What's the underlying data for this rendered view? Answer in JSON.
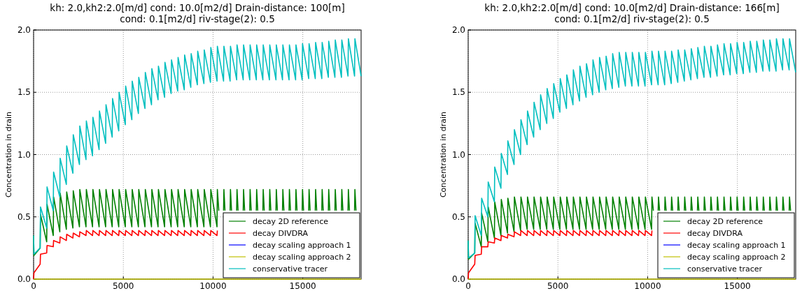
{
  "chart_data": [
    {
      "type": "line",
      "title": "kh: 2.0,kh2:2.0[m/d] cond: 10.0[m2/d] Drain-distance: 100[m]\ncond: 0.1[m2/d] riv-stage(2): 0.5",
      "ylabel": "Concentration in drain",
      "xlim": [
        0,
        18250
      ],
      "ylim": [
        0,
        2
      ],
      "xticks": [
        0,
        5000,
        10000,
        15000
      ],
      "yticks": [
        {
          "value": 0,
          "label": "0.0"
        },
        {
          "value": 0.5,
          "label": "0.5"
        },
        {
          "value": 1,
          "label": "1.0"
        },
        {
          "value": 1.5,
          "label": "1.5"
        },
        {
          "value": 2,
          "label": "2.0"
        }
      ],
      "grid": true,
      "legend": "bottom right",
      "x": [
        0,
        20,
        365,
        385,
        730,
        750,
        1095,
        1115,
        1460,
        1480,
        1825,
        1845,
        2190,
        2210,
        2555,
        2575,
        2920,
        2940,
        3285,
        3305,
        3650,
        3670,
        4015,
        4035,
        4380,
        4400,
        4745,
        4765,
        5110,
        5130,
        5475,
        5495,
        5840,
        5860,
        6205,
        6225,
        6570,
        6590,
        6935,
        6955,
        7300,
        7320,
        7665,
        7685,
        8030,
        8050,
        8395,
        8415,
        8760,
        8780,
        9125,
        9145,
        9490,
        9510,
        9855,
        9875,
        10220,
        10240,
        10585,
        10605,
        10950,
        10970,
        11315,
        11335,
        11680,
        11700,
        12045,
        12065,
        12410,
        12430,
        12775,
        12795,
        13140,
        13160,
        13505,
        13525,
        13870,
        13890,
        14235,
        14255,
        14600,
        14620,
        14965,
        14985,
        15330,
        15350,
        15695,
        15715,
        16060,
        16080,
        16425,
        16445,
        16790,
        16810,
        17155,
        17175,
        17520,
        17540,
        17885,
        17905,
        18250
      ],
      "series": [
        {
          "name": "decay 2D reference",
          "color": "#008000",
          "x": [
            0,
            20,
            365,
            385,
            730,
            750,
            1095,
            1115,
            1460,
            1480,
            1825,
            1845,
            2190,
            2210,
            2555,
            2575,
            2920,
            2940,
            3285,
            3305,
            3650,
            3670,
            4015,
            4035,
            4380,
            4400,
            4745,
            4765,
            5110,
            5130,
            5475,
            5495,
            5840,
            5860,
            6205,
            6225,
            6570,
            6590,
            6935,
            6955,
            7300,
            7320,
            7665,
            7685,
            8030,
            8050,
            8395,
            8415,
            8760,
            8780,
            9125,
            9145,
            9490,
            9510,
            9855,
            9875,
            10220,
            10240,
            10320,
            10440,
            10585,
            10605,
            10665,
            10785,
            10950,
            10970,
            11030,
            11150,
            11315,
            11335,
            11395,
            11515,
            11680,
            11700,
            11760,
            11880,
            12045,
            12065,
            12125,
            12245,
            12410,
            12430,
            12490,
            12610,
            12775,
            12795,
            12855,
            12975,
            13140,
            13160,
            13220,
            13340,
            13505,
            13525,
            13585,
            13705,
            13870,
            13890,
            13950,
            14070,
            14235,
            14255,
            14315,
            14435,
            14600,
            14620,
            14680,
            14800,
            14965,
            14985,
            15045,
            15165,
            15330,
            15350,
            15410,
            15530,
            15695,
            15715,
            15775,
            15895,
            16060,
            16080,
            16140,
            16260,
            16425,
            16445,
            16505,
            16625,
            16790,
            16810,
            16870,
            16990,
            17155,
            17175,
            17235,
            17355,
            17520,
            17540,
            17600,
            17720,
            17885,
            17905,
            17965
          ],
          "values": [
            0.35,
            0.19,
            0.25,
            0.52,
            0.3,
            0.6,
            0.35,
            0.66,
            0.38,
            0.69,
            0.4,
            0.7,
            0.41,
            0.71,
            0.42,
            0.72,
            0.42,
            0.72,
            0.42,
            0.72,
            0.42,
            0.72,
            0.42,
            0.72,
            0.42,
            0.72,
            0.42,
            0.72,
            0.42,
            0.72,
            0.42,
            0.72,
            0.42,
            0.72,
            0.42,
            0.72,
            0.42,
            0.72,
            0.42,
            0.72,
            0.42,
            0.72,
            0.42,
            0.72,
            0.42,
            0.72,
            0.42,
            0.72,
            0.42,
            0.72,
            0.42,
            0.72,
            0.42,
            0.72,
            0.42,
            0.72,
            0.42,
            0.72,
            0.55,
            null,
            0.55,
            0.72,
            0.55,
            null,
            0.55,
            0.72,
            0.55,
            null,
            0.55,
            0.72,
            0.55,
            null,
            0.55,
            0.72,
            0.55,
            null,
            0.55,
            0.72,
            0.55,
            null,
            0.55,
            0.72,
            0.55,
            null,
            0.55,
            0.72,
            0.55,
            null,
            0.55,
            0.72,
            0.55,
            null,
            0.55,
            0.72,
            0.55,
            null,
            0.55,
            0.72,
            0.55,
            null,
            0.55,
            0.72,
            0.55,
            null,
            0.55,
            0.72,
            0.55,
            null,
            0.55,
            0.72,
            0.55,
            null,
            0.55,
            0.72,
            0.55,
            null,
            0.55,
            0.72,
            0.55,
            null,
            0.55,
            0.72,
            0.55,
            null,
            0.55,
            0.72,
            0.55,
            null,
            0.55,
            0.72,
            0.55,
            null,
            0.55,
            0.72,
            0.55,
            null,
            0.55,
            0.72,
            0.55,
            null,
            0.55,
            0.72,
            0.55
          ]
        },
        {
          "name": "decay DIVDRA",
          "color": "#ff0000",
          "x": [
            0,
            20,
            365,
            385,
            730,
            750,
            1095,
            1115,
            1460,
            1480,
            1825,
            1845,
            2190,
            2210,
            2555,
            2575,
            2920,
            2940,
            3285,
            3305,
            3650,
            3670,
            4015,
            4035,
            4380,
            4400,
            4745,
            4765,
            5110,
            5130,
            5475,
            5495,
            5840,
            5860,
            6205,
            6225,
            6570,
            6590,
            6935,
            6955,
            7300,
            7320,
            7665,
            7685,
            8030,
            8050,
            8395,
            8415,
            8760,
            8780,
            9125,
            9145,
            9490,
            9510,
            9855,
            9875,
            10220,
            10240
          ],
          "values": [
            0,
            0.05,
            0.12,
            0.2,
            0.21,
            0.27,
            0.26,
            0.31,
            0.29,
            0.34,
            0.31,
            0.36,
            0.33,
            0.37,
            0.34,
            0.38,
            0.35,
            0.39,
            0.35,
            0.39,
            0.35,
            0.39,
            0.35,
            0.39,
            0.35,
            0.39,
            0.35,
            0.39,
            0.35,
            0.39,
            0.35,
            0.39,
            0.35,
            0.39,
            0.35,
            0.39,
            0.35,
            0.39,
            0.35,
            0.39,
            0.35,
            0.39,
            0.35,
            0.39,
            0.35,
            0.39,
            0.35,
            0.39,
            0.35,
            0.39,
            0.35,
            0.39,
            0.35,
            0.39,
            0.35,
            0.39,
            0.35,
            0.39
          ]
        },
        {
          "name": "decay scaling approach 1",
          "color": "#0000ff",
          "values": [
            null,
            null,
            null,
            null,
            null,
            null,
            null,
            null,
            null,
            null,
            null,
            null,
            null,
            null,
            null,
            null,
            null,
            null,
            null,
            null,
            null,
            null,
            null,
            null,
            null,
            null,
            null,
            null,
            null,
            null,
            null,
            null,
            null,
            null,
            null,
            null,
            null,
            null,
            null,
            null,
            null,
            null,
            null,
            null,
            null,
            null,
            null,
            null,
            null,
            null,
            null,
            null,
            null,
            null,
            null,
            null,
            null,
            null,
            null,
            null,
            null,
            null,
            null,
            null,
            null,
            null,
            null,
            null,
            null,
            null,
            null,
            null,
            null,
            null,
            null,
            null,
            null,
            null,
            null,
            null,
            null,
            null,
            null,
            null,
            null,
            null,
            null,
            null,
            null,
            null,
            null,
            null,
            null,
            null,
            null,
            null,
            null,
            null,
            null,
            null,
            null
          ]
        },
        {
          "name": "decay scaling approach 2",
          "color": "#bfbf00",
          "x": [
            0,
            18250
          ],
          "values": [
            0,
            0
          ]
        },
        {
          "name": "conservative tracer",
          "color": "#00bfbf",
          "values": [
            0.35,
            0.2,
            0.25,
            0.58,
            0.41,
            0.74,
            0.55,
            0.86,
            0.66,
            0.97,
            0.76,
            1.07,
            0.85,
            1.16,
            0.92,
            1.23,
            0.96,
            1.27,
            0.99,
            1.3,
            1.04,
            1.35,
            1.09,
            1.4,
            1.14,
            1.45,
            1.19,
            1.5,
            1.24,
            1.55,
            1.28,
            1.59,
            1.33,
            1.62,
            1.37,
            1.66,
            1.4,
            1.69,
            1.44,
            1.71,
            1.46,
            1.74,
            1.49,
            1.76,
            1.51,
            1.78,
            1.52,
            1.8,
            1.54,
            1.81,
            1.56,
            1.83,
            1.57,
            1.84,
            1.58,
            1.86,
            1.59,
            1.87,
            1.59,
            1.87,
            1.59,
            1.87,
            1.6,
            1.88,
            1.6,
            1.88,
            1.6,
            1.88,
            1.6,
            1.88,
            1.6,
            1.88,
            1.6,
            1.88,
            1.6,
            1.88,
            1.6,
            1.88,
            1.6,
            1.88,
            1.6,
            1.88,
            1.6,
            1.89,
            1.61,
            1.89,
            1.61,
            1.9,
            1.61,
            1.9,
            1.62,
            1.91,
            1.62,
            1.92,
            1.62,
            1.92,
            1.63,
            1.93,
            1.63,
            1.93,
            1.63
          ]
        }
      ]
    },
    {
      "type": "line",
      "title": "kh: 2.0,kh2:2.0[m/d] cond: 10.0[m2/d] Drain-distance: 166[m]\ncond: 0.1[m2/d] riv-stage(2): 0.5",
      "ylabel": "Concentration in drain",
      "xlim": [
        0,
        18250
      ],
      "ylim": [
        0,
        2
      ],
      "xticks": [
        0,
        5000,
        10000,
        15000
      ],
      "yticks": [
        {
          "value": 0,
          "label": "0.0"
        },
        {
          "value": 0.5,
          "label": "0.5"
        },
        {
          "value": 1,
          "label": "1.0"
        },
        {
          "value": 1.5,
          "label": "1.5"
        },
        {
          "value": 2,
          "label": "2.0"
        }
      ],
      "grid": true,
      "legend": "bottom right",
      "x": [
        0,
        20,
        365,
        385,
        730,
        750,
        1095,
        1115,
        1460,
        1480,
        1825,
        1845,
        2190,
        2210,
        2555,
        2575,
        2920,
        2940,
        3285,
        3305,
        3650,
        3670,
        4015,
        4035,
        4380,
        4400,
        4745,
        4765,
        5110,
        5130,
        5475,
        5495,
        5840,
        5860,
        6205,
        6225,
        6570,
        6590,
        6935,
        6955,
        7300,
        7320,
        7665,
        7685,
        8030,
        8050,
        8395,
        8415,
        8760,
        8780,
        9125,
        9145,
        9490,
        9510,
        9855,
        9875,
        10220,
        10240,
        10585,
        10605,
        10950,
        10970,
        11315,
        11335,
        11680,
        11700,
        12045,
        12065,
        12410,
        12430,
        12775,
        12795,
        13140,
        13160,
        13505,
        13525,
        13870,
        13890,
        14235,
        14255,
        14600,
        14620,
        14965,
        14985,
        15330,
        15350,
        15695,
        15715,
        16060,
        16080,
        16425,
        16445,
        16790,
        16810,
        17155,
        17175,
        17520,
        17540,
        17885,
        17905,
        18250
      ],
      "series": [
        {
          "name": "decay 2D reference",
          "color": "#008000",
          "x": [
            0,
            20,
            365,
            385,
            730,
            750,
            1095,
            1115,
            1460,
            1480,
            1825,
            1845,
            2190,
            2210,
            2555,
            2575,
            2920,
            2940,
            3285,
            3305,
            3650,
            3670,
            4015,
            4035,
            4380,
            4400,
            4745,
            4765,
            5110,
            5130,
            5475,
            5495,
            5840,
            5860,
            6205,
            6225,
            6570,
            6590,
            6935,
            6955,
            7300,
            7320,
            7665,
            7685,
            8030,
            8050,
            8395,
            8415,
            8760,
            8780,
            9125,
            9145,
            9490,
            9510,
            9855,
            9875,
            10220,
            10240,
            10320,
            10440,
            10585,
            10605,
            10665,
            10785,
            10950,
            10970,
            11030,
            11150,
            11315,
            11335,
            11395,
            11515,
            11680,
            11700,
            11760,
            11880,
            12045,
            12065,
            12125,
            12245,
            12410,
            12430,
            12490,
            12610,
            12775,
            12795,
            12855,
            12975,
            13140,
            13160,
            13220,
            13340,
            13505,
            13525,
            13585,
            13705,
            13870,
            13890,
            13950,
            14070,
            14235,
            14255,
            14315,
            14435,
            14600,
            14620,
            14680,
            14800,
            14965,
            14985,
            15045,
            15165,
            15330,
            15350,
            15410,
            15530,
            15695,
            15715,
            15775,
            15895,
            16060,
            16080,
            16140,
            16260,
            16425,
            16445,
            16505,
            16625,
            16790,
            16810,
            16870,
            16990,
            17155,
            17175,
            17235,
            17355,
            17520,
            17540,
            17600,
            17720,
            17885,
            17905,
            17965
          ],
          "values": [
            0.31,
            0.16,
            0.21,
            0.45,
            0.26,
            0.53,
            0.3,
            0.58,
            0.33,
            0.62,
            0.35,
            0.64,
            0.37,
            0.65,
            0.38,
            0.66,
            0.39,
            0.66,
            0.4,
            0.66,
            0.4,
            0.66,
            0.4,
            0.66,
            0.4,
            0.66,
            0.4,
            0.66,
            0.4,
            0.66,
            0.4,
            0.66,
            0.4,
            0.66,
            0.4,
            0.66,
            0.4,
            0.66,
            0.4,
            0.66,
            0.4,
            0.66,
            0.4,
            0.66,
            0.4,
            0.66,
            0.4,
            0.66,
            0.4,
            0.66,
            0.4,
            0.66,
            0.4,
            0.66,
            0.4,
            0.66,
            0.4,
            0.66,
            0.55,
            null,
            0.55,
            0.66,
            0.55,
            null,
            0.55,
            0.66,
            0.55,
            null,
            0.55,
            0.66,
            0.55,
            null,
            0.55,
            0.66,
            0.55,
            null,
            0.55,
            0.66,
            0.55,
            null,
            0.55,
            0.66,
            0.55,
            null,
            0.55,
            0.66,
            0.55,
            null,
            0.55,
            0.66,
            0.55,
            null,
            0.55,
            0.66,
            0.55,
            null,
            0.55,
            0.66,
            0.55,
            null,
            0.55,
            0.66,
            0.55,
            null,
            0.55,
            0.66,
            0.55,
            null,
            0.55,
            0.66,
            0.55,
            null,
            0.55,
            0.66,
            0.55,
            null,
            0.55,
            0.66,
            0.55,
            null,
            0.55,
            0.66,
            0.55,
            null,
            0.55,
            0.66,
            0.55,
            null,
            0.55,
            0.66,
            0.55,
            null,
            0.55,
            0.66,
            0.55,
            null,
            0.55,
            0.66,
            0.55,
            null,
            0.55,
            0.66,
            0.55
          ]
        },
        {
          "name": "decay DIVDRA",
          "color": "#ff0000",
          "x": [
            0,
            20,
            365,
            385,
            730,
            750,
            1095,
            1115,
            1460,
            1480,
            1825,
            1845,
            2190,
            2210,
            2555,
            2575,
            2920,
            2940,
            3285,
            3305,
            3650,
            3670,
            4015,
            4035,
            4380,
            4400,
            4745,
            4765,
            5110,
            5130,
            5475,
            5495,
            5840,
            5860,
            6205,
            6225,
            6570,
            6590,
            6935,
            6955,
            7300,
            7320,
            7665,
            7685,
            8030,
            8050,
            8395,
            8415,
            8760,
            8780,
            9125,
            9145,
            9490,
            9510,
            9855,
            9875,
            10220,
            10240
          ],
          "values": [
            0,
            0.05,
            0.12,
            0.19,
            0.2,
            0.26,
            0.26,
            0.3,
            0.29,
            0.33,
            0.31,
            0.35,
            0.33,
            0.36,
            0.34,
            0.38,
            0.35,
            0.39,
            0.35,
            0.39,
            0.35,
            0.39,
            0.35,
            0.39,
            0.35,
            0.39,
            0.35,
            0.39,
            0.35,
            0.39,
            0.35,
            0.39,
            0.35,
            0.39,
            0.35,
            0.39,
            0.35,
            0.39,
            0.35,
            0.39,
            0.35,
            0.39,
            0.35,
            0.39,
            0.35,
            0.39,
            0.35,
            0.39,
            0.35,
            0.39,
            0.35,
            0.39,
            0.35,
            0.39,
            0.35,
            0.39,
            0.35,
            0.39
          ]
        },
        {
          "name": "decay scaling approach 1",
          "color": "#0000ff",
          "values": [
            null,
            null,
            null,
            null,
            null,
            null,
            null,
            null,
            null,
            null,
            null,
            null,
            null,
            null,
            null,
            null,
            null,
            null,
            null,
            null,
            null,
            null,
            null,
            null,
            null,
            null,
            null,
            null,
            null,
            null,
            null,
            null,
            null,
            null,
            null,
            null,
            null,
            null,
            null,
            null,
            null,
            null,
            null,
            null,
            null,
            null,
            null,
            null,
            null,
            null,
            null,
            null,
            null,
            null,
            null,
            null,
            null,
            null,
            null,
            null,
            null,
            null,
            null,
            null,
            null,
            null,
            null,
            null,
            null,
            null,
            null,
            null,
            null,
            null,
            null,
            null,
            null,
            null,
            null,
            null,
            null,
            null,
            null,
            null,
            null,
            null,
            null,
            null,
            null,
            null,
            null,
            null,
            null,
            null,
            null,
            null,
            null,
            null,
            null,
            null,
            null
          ]
        },
        {
          "name": "decay scaling approach 2",
          "color": "#bfbf00",
          "x": [
            0,
            18250
          ],
          "values": [
            0,
            0
          ]
        },
        {
          "name": "conservative tracer",
          "color": "#00bfbf",
          "values": [
            0.31,
            0.17,
            0.21,
            0.51,
            0.35,
            0.65,
            0.5,
            0.78,
            0.62,
            0.9,
            0.73,
            1.01,
            0.84,
            1.11,
            0.92,
            1.2,
            1,
            1.28,
            1.08,
            1.35,
            1.14,
            1.42,
            1.2,
            1.48,
            1.25,
            1.53,
            1.29,
            1.57,
            1.34,
            1.61,
            1.37,
            1.64,
            1.4,
            1.68,
            1.43,
            1.71,
            1.46,
            1.73,
            1.48,
            1.76,
            1.5,
            1.78,
            1.52,
            1.79,
            1.53,
            1.81,
            1.54,
            1.82,
            1.55,
            1.82,
            1.55,
            1.82,
            1.55,
            1.82,
            1.55,
            1.82,
            1.56,
            1.83,
            1.56,
            1.83,
            1.56,
            1.83,
            1.57,
            1.83,
            1.58,
            1.84,
            1.59,
            1.84,
            1.6,
            1.85,
            1.61,
            1.86,
            1.62,
            1.87,
            1.62,
            1.87,
            1.63,
            1.88,
            1.64,
            1.89,
            1.64,
            1.89,
            1.65,
            1.9,
            1.65,
            1.9,
            1.66,
            1.91,
            1.66,
            1.91,
            1.67,
            1.92,
            1.67,
            1.92,
            1.67,
            1.93,
            1.68,
            1.93,
            1.68,
            1.93,
            1.66
          ]
        }
      ]
    }
  ]
}
